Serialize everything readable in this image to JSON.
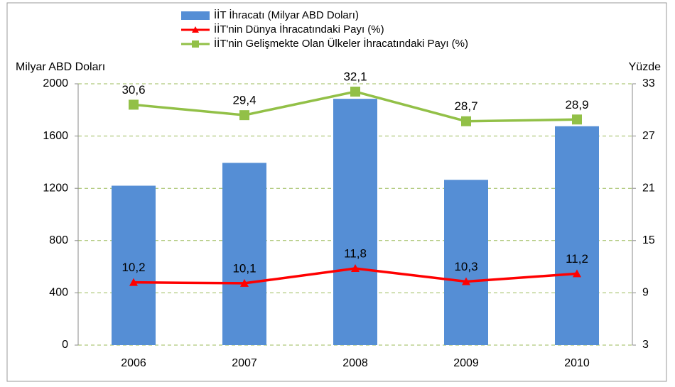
{
  "chart_data": {
    "type": "combo",
    "categories": [
      "2006",
      "2007",
      "2008",
      "2009",
      "2010"
    ],
    "ylabel": "Milyar ABD Doları",
    "y2label": "Yüzde",
    "ylim": [
      0,
      2000
    ],
    "yticks": [
      0,
      400,
      800,
      1200,
      1600,
      2000
    ],
    "y2lim": [
      3,
      33
    ],
    "y2ticks": [
      3,
      9,
      15,
      21,
      27,
      33
    ],
    "grid": true,
    "legend": "top",
    "series": [
      {
        "name": "İİT İhracatı (Milyar ABD Doları)",
        "type": "bar",
        "color": "#558ed5",
        "values": [
          1220,
          1395,
          1885,
          1265,
          1675
        ]
      },
      {
        "name": "İİT'nin Dünya İhracatındaki Payı (%)",
        "type": "line",
        "axis": "y2",
        "marker": "triangle",
        "color": "#ff0000",
        "values": [
          10.2,
          10.1,
          11.8,
          10.3,
          11.2
        ],
        "value_labels": [
          "10,2",
          "10,1",
          "11,8",
          "10,3",
          "11,2"
        ]
      },
      {
        "name": "İİT'nin Gelişmekte Olan Ülkeler İhracatındaki Payı (%)",
        "type": "line",
        "axis": "y2",
        "marker": "square",
        "color": "#92c047",
        "values": [
          30.6,
          29.4,
          32.1,
          28.7,
          28.9
        ],
        "value_labels": [
          "30,6",
          "29,4",
          "32,1",
          "28,7",
          "28,9"
        ]
      }
    ]
  }
}
